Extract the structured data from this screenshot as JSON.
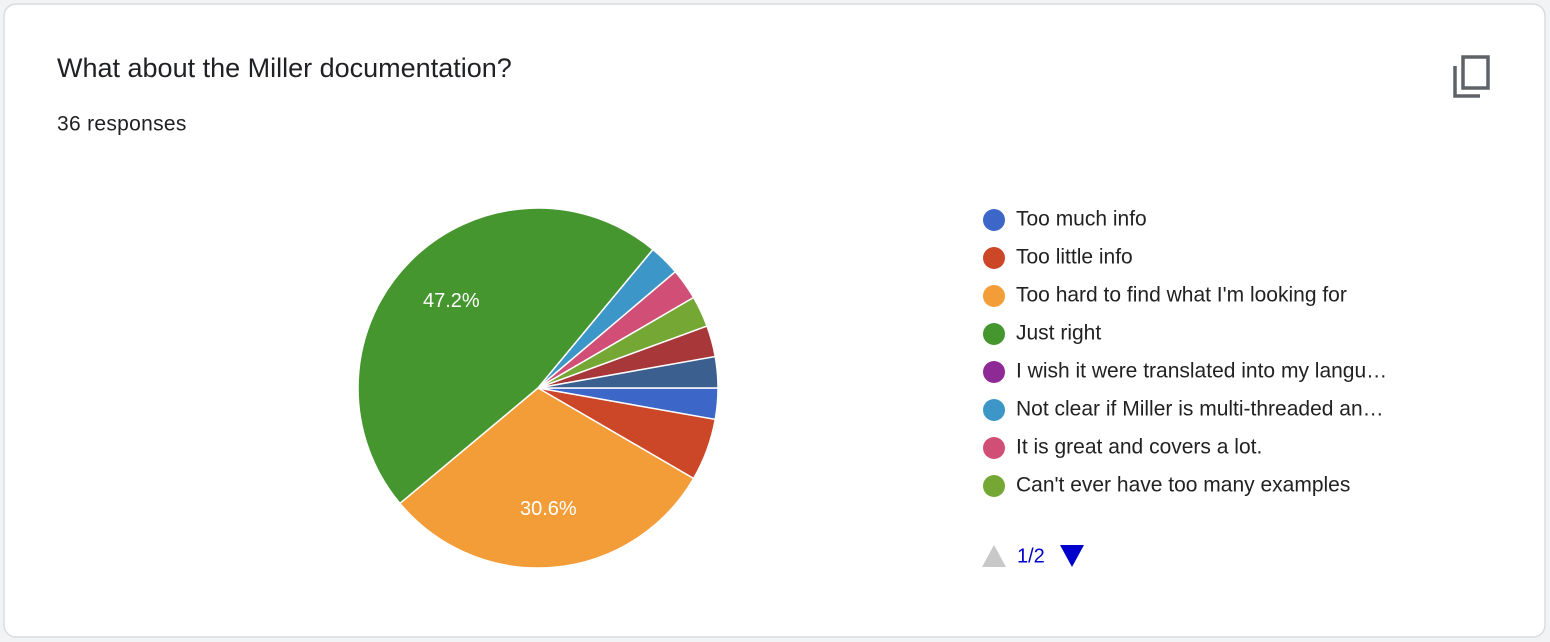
{
  "chart_data": {
    "type": "pie",
    "title": "What about the Miller documentation?",
    "subtitle": "36 responses",
    "categories": [
      "Too much info",
      "Too little info",
      "Too hard to find what I'm looking for",
      "Just right",
      "I wish it were translated into my langu…",
      "Not clear if Miller is multi-threaded an…",
      "It is great and covers a lot.",
      "Can't ever have too many examples",
      null,
      null
    ],
    "values": [
      2.8,
      5.6,
      30.6,
      47.2,
      0,
      2.8,
      2.8,
      2.8,
      2.8,
      2.8
    ],
    "value_labels": [
      null,
      null,
      "30.6%",
      "47.2%",
      null,
      null,
      null,
      null,
      null,
      null
    ],
    "colors": [
      "#3c66c8",
      "#cc4628",
      "#f29d38",
      "#469630",
      "#8e2a96",
      "#3c97c8",
      "#d14f76",
      "#74a734",
      "#a8373a",
      "#3b5f8f"
    ],
    "legend_page": "1/2"
  }
}
